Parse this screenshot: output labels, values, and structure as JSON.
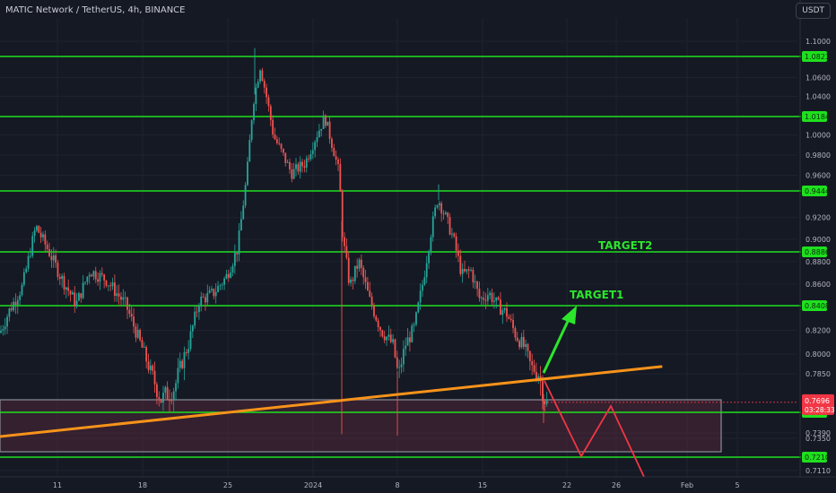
{
  "header": {
    "title": "MATIC Network / TetherUS, 4h, BINANCE",
    "currency": "USDT"
  },
  "chart_data": {
    "type": "candlestick",
    "symbol": "MATICUSDT",
    "interval": "4h",
    "exchange": "BINANCE",
    "ylim": [
      0.71,
      1.105
    ],
    "y_ticks": [
      "1.1000",
      "1.0600",
      "1.0400",
      "1.0000",
      "0.9800",
      "0.9600",
      "0.9200",
      "0.9000",
      "0.8800",
      "0.8600",
      "0.8200",
      "0.8000",
      "0.7850",
      "0.7390",
      "0.7350",
      "0.7110"
    ],
    "x_ticks": [
      "11",
      "18",
      "25",
      "2024",
      "8",
      "15",
      "22",
      "26",
      "Feb",
      "5"
    ],
    "horizontal_levels": [
      {
        "label": "1.0823",
        "value": 1.0823
      },
      {
        "label": "1.0184",
        "value": 1.0184
      },
      {
        "label": "0.9444",
        "value": 0.9444
      },
      {
        "label": "0.8886",
        "value": 0.8886
      },
      {
        "label": "0.8408",
        "value": 0.8408
      },
      {
        "label": "0.7642",
        "value": 0.7642
      },
      {
        "label": "0.7210",
        "value": 0.721
      }
    ],
    "current_price": {
      "value": 0.7696,
      "label": "0.7696",
      "countdown": "03:28:33",
      "color": "#f23645"
    },
    "annotations": [
      {
        "text": "TARGET1",
        "color": "#2ce62c"
      },
      {
        "text": "TARGET2",
        "color": "#2ce62c"
      }
    ],
    "colors": {
      "up": "#26a69a",
      "down": "#ef5350",
      "levels": "#1ee01e",
      "trendline": "#f7931a",
      "target_arrow": "#2ce62c",
      "projection": "#f23645",
      "zone": "#5a2a3e"
    }
  }
}
